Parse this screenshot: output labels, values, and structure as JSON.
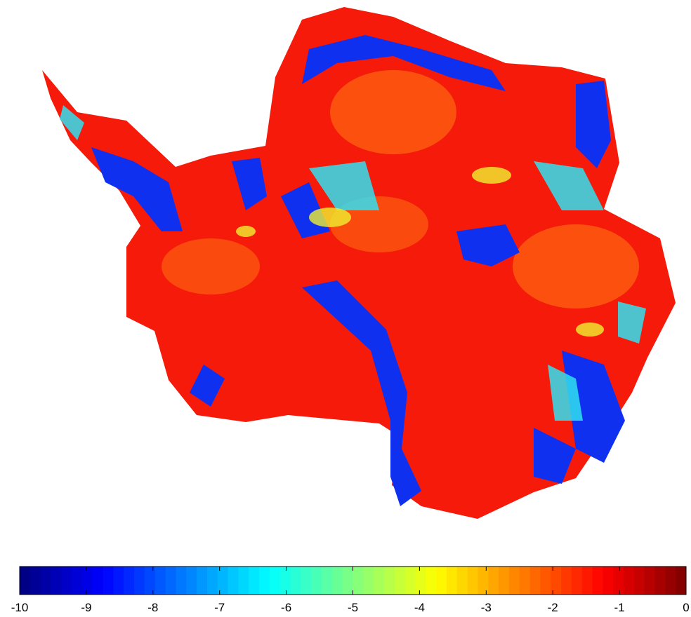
{
  "colorbar": {
    "colormap": "jet",
    "range": [
      -10,
      0
    ],
    "ticks": [
      -10,
      -9,
      -8,
      -7,
      -6,
      -5,
      -4,
      -3,
      -2,
      -1,
      0
    ]
  }
}
